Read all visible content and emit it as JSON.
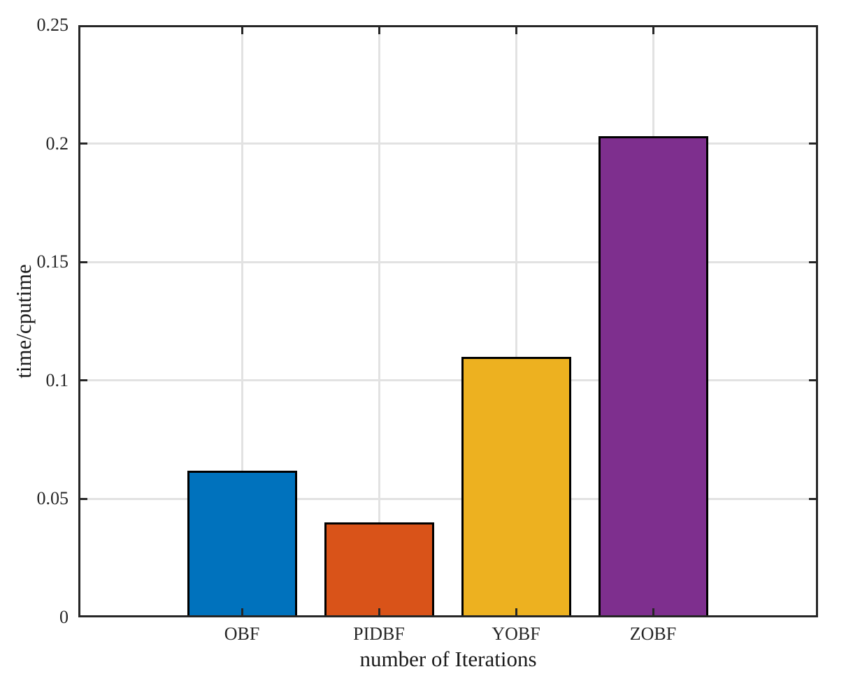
{
  "figure": {
    "background": "#ffffff",
    "axis_color": "#262626",
    "grid_color": "#e2e2e2",
    "bar_edge_color": "#000000"
  },
  "chart_data": {
    "type": "bar",
    "categories": [
      "OBF",
      "PIDBF",
      "YOBF",
      "ZOBF"
    ],
    "values": [
      0.062,
      0.04,
      0.11,
      0.203
    ],
    "bar_colors": [
      "#0072BD",
      "#D95319",
      "#EDB120",
      "#7E2F8E"
    ],
    "title": "",
    "xlabel": "number of Iterations",
    "ylabel": "time/cputime",
    "ylim": [
      0,
      0.25
    ],
    "yticks": [
      0,
      0.05,
      0.1,
      0.15,
      0.2,
      0.25
    ],
    "ytick_labels": [
      "0",
      "0.05",
      "0.1",
      "0.15",
      "0.2",
      "0.25"
    ],
    "grid": true,
    "legend_position": "none",
    "bar_width_fraction": 0.8
  }
}
